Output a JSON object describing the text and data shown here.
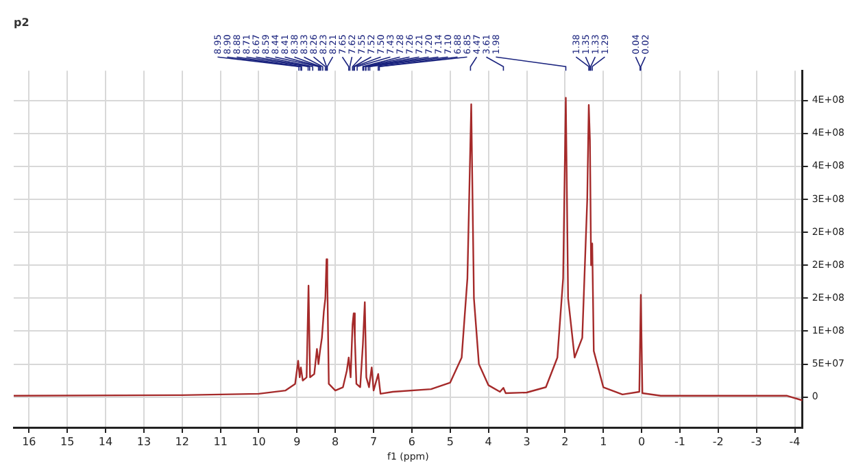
{
  "chart_data": {
    "type": "line",
    "title": "p2",
    "xlabel": "f1 (ppm)",
    "series": [
      {
        "color": "#a52a2a",
        "x": [
          16.4,
          12,
          10,
          9.3,
          9.05,
          8.97,
          8.93,
          8.9,
          8.85,
          8.75,
          8.7,
          8.66,
          8.55,
          8.48,
          8.44,
          8.4,
          8.35,
          8.3,
          8.26,
          8.23,
          8.21,
          8.17,
          8.0,
          7.8,
          7.7,
          7.65,
          7.6,
          7.55,
          7.52,
          7.49,
          7.45,
          7.35,
          7.28,
          7.23,
          7.19,
          7.12,
          7.05,
          7.0,
          6.88,
          6.82,
          6.5,
          5.5,
          5.0,
          4.7,
          4.55,
          4.45,
          4.38,
          4.25,
          4.0,
          3.7,
          3.61,
          3.55,
          3.0,
          2.5,
          2.2,
          2.05,
          1.98,
          1.92,
          1.75,
          1.55,
          1.42,
          1.38,
          1.35,
          1.32,
          1.29,
          1.25,
          1.0,
          0.5,
          0.06,
          0.02,
          -0.02,
          -0.5,
          -3.8,
          -4.2
        ],
        "values": [
          2000000,
          3000000,
          5000000,
          10000000,
          20000000,
          55000000,
          30000000,
          45000000,
          25000000,
          30000000,
          169000000,
          30000000,
          35000000,
          73000000,
          50000000,
          70000000,
          90000000,
          130000000,
          150000000,
          209000000,
          180000000,
          20000000,
          10000000,
          15000000,
          40000000,
          60000000,
          30000000,
          110000000,
          127000000,
          90000000,
          20000000,
          15000000,
          80000000,
          144000000,
          30000000,
          15000000,
          45000000,
          10000000,
          35000000,
          5000000,
          8000000,
          12000000,
          22000000,
          60000000,
          180000000,
          444000000,
          150000000,
          50000000,
          18000000,
          8000000,
          14000000,
          6000000,
          7000000,
          15000000,
          60000000,
          180000000,
          454000000,
          150000000,
          60000000,
          90000000,
          300000000,
          443000000,
          390000000,
          200000000,
          233000000,
          70000000,
          15000000,
          4000000,
          8000000,
          155000000,
          6000000,
          2000000,
          2000000,
          -5000000
        ]
      }
    ],
    "xlim": [
      16.4,
      -4.2
    ],
    "xticks": [
      16,
      15,
      14,
      13,
      12,
      11,
      10,
      9,
      8,
      7,
      6,
      5,
      4,
      3,
      2,
      1,
      0,
      -1,
      -2,
      -3,
      -4
    ],
    "ylim": [
      -46000000,
      495000000
    ],
    "yticks": [
      0,
      {
        "value": 50000000,
        "label": "5E+07"
      },
      {
        "value": 100000000,
        "label": "1E+08"
      },
      {
        "value": 150000000,
        "label": "2E+08"
      },
      {
        "value": 200000000,
        "label": "2E+08"
      },
      {
        "value": 250000000,
        "label": "2E+08"
      },
      {
        "value": 300000000,
        "label": "3E+08"
      },
      {
        "value": 350000000,
        "label": "4E+08"
      },
      {
        "value": 400000000,
        "label": "4E+08"
      },
      {
        "value": 450000000,
        "label": "4E+08"
      }
    ],
    "grid": true,
    "legend": false,
    "marker": "none",
    "line_style": "solid",
    "annotations": [
      {
        "text": "8.95",
        "x": 8.95
      },
      {
        "text": "8.90",
        "x": 8.9
      },
      {
        "text": "8.88",
        "x": 8.88
      },
      {
        "text": "8.71",
        "x": 8.71
      },
      {
        "text": "8.67",
        "x": 8.67
      },
      {
        "text": "8.59",
        "x": 8.59
      },
      {
        "text": "8.44",
        "x": 8.44
      },
      {
        "text": "8.41",
        "x": 8.41
      },
      {
        "text": "8.38",
        "x": 8.38
      },
      {
        "text": "8.33",
        "x": 8.33
      },
      {
        "text": "8.26",
        "x": 8.26
      },
      {
        "text": "8.23",
        "x": 8.23
      },
      {
        "text": "8.21",
        "x": 8.21
      },
      {
        "text": "7.65",
        "x": 7.65
      },
      {
        "text": "7.62",
        "x": 7.62
      },
      {
        "text": "7.55",
        "x": 7.55
      },
      {
        "text": "7.52",
        "x": 7.52
      },
      {
        "text": "7.50",
        "x": 7.5
      },
      {
        "text": "7.43",
        "x": 7.43
      },
      {
        "text": "7.28",
        "x": 7.28
      },
      {
        "text": "7.26",
        "x": 7.26
      },
      {
        "text": "7.21",
        "x": 7.21
      },
      {
        "text": "7.20",
        "x": 7.2
      },
      {
        "text": "7.14",
        "x": 7.14
      },
      {
        "text": "7.10",
        "x": 7.1
      },
      {
        "text": "6.88",
        "x": 6.88
      },
      {
        "text": "6.85",
        "x": 6.85
      },
      {
        "text": "4.47",
        "x": 4.47
      },
      {
        "text": "3.61",
        "x": 3.61
      },
      {
        "text": "1.98",
        "x": 1.98
      },
      {
        "text": "1.38",
        "x": 1.38
      },
      {
        "text": "1.35",
        "x": 1.35
      },
      {
        "text": "1.33",
        "x": 1.33
      },
      {
        "text": "1.29",
        "x": 1.29
      },
      {
        "text": "0.04",
        "x": 0.04
      },
      {
        "text": "0.02",
        "x": 0.02
      }
    ]
  }
}
